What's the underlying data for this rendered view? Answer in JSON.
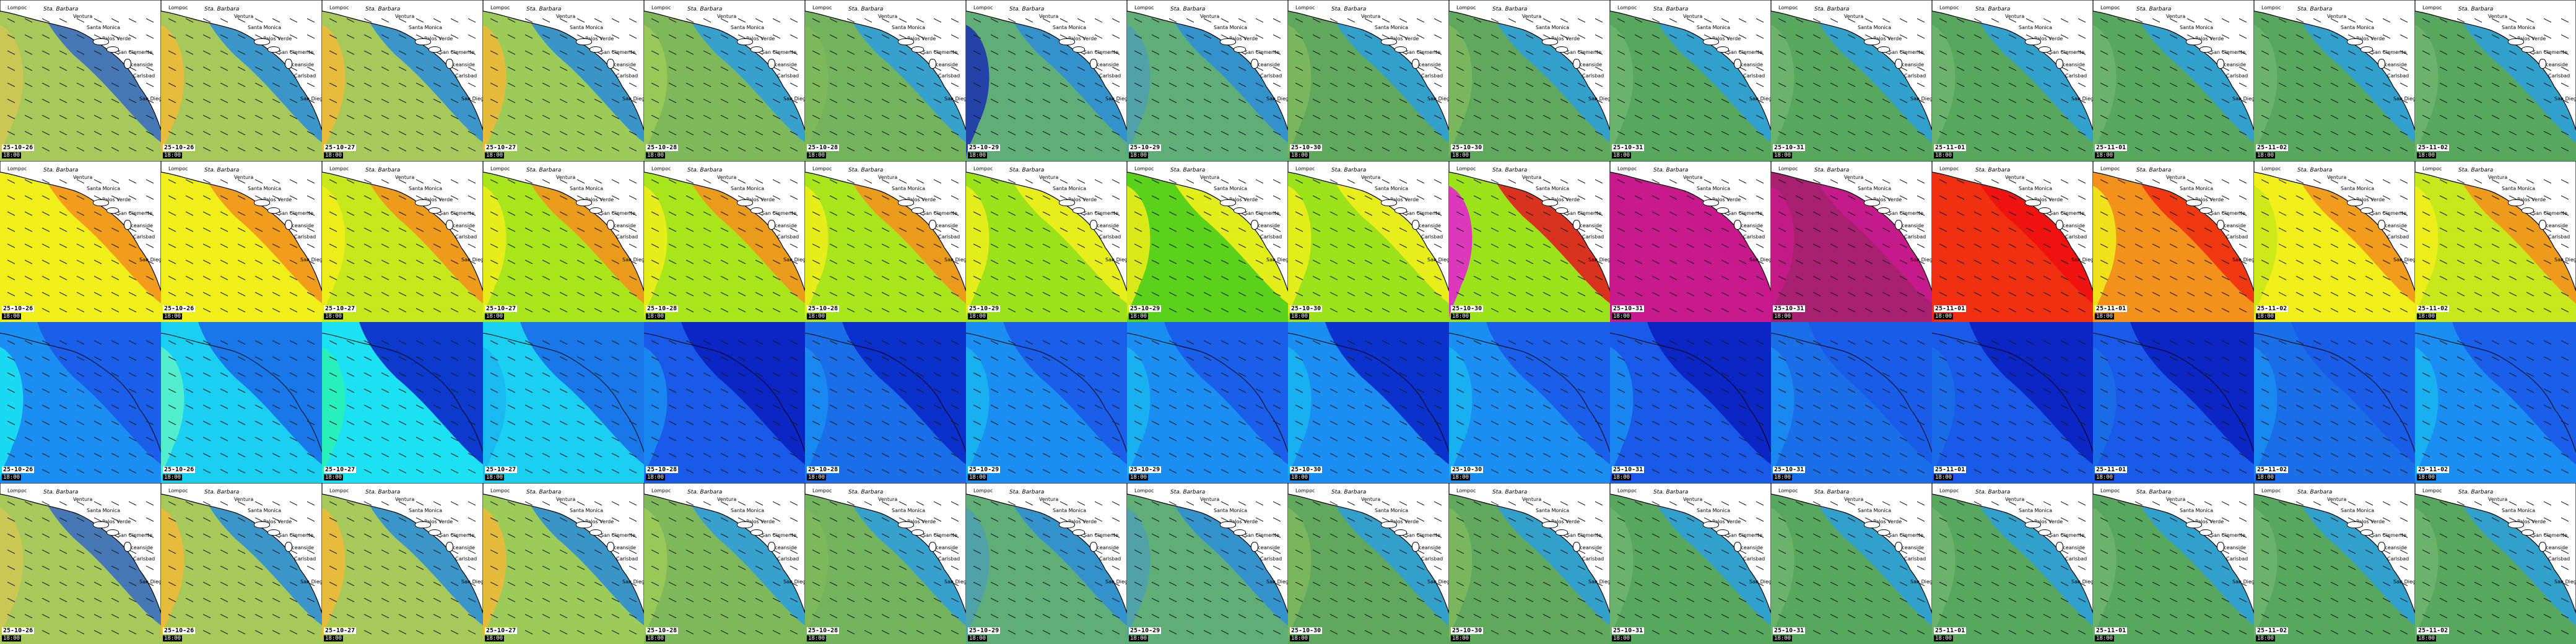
{
  "layout_info": {
    "rows": 4,
    "cols": 16
  },
  "place_labels": [
    {
      "text": "Lompoc",
      "cls": "place"
    },
    {
      "text": "Sta. Barbara",
      "cls": "place italic"
    },
    {
      "text": "Ventura",
      "cls": "place"
    },
    {
      "text": "Santa Monica",
      "cls": "place"
    },
    {
      "text": "Palos Verde",
      "cls": "place"
    },
    {
      "text": "San Clemente",
      "cls": "place"
    },
    {
      "text": "Oceanside",
      "cls": "place"
    },
    {
      "text": "Carlsbad",
      "cls": "place"
    },
    {
      "text": "San Diego",
      "cls": "place"
    }
  ],
  "time_stamps": [
    {
      "date": "25-10-26",
      "time": "18:00"
    },
    {
      "date": "25-10-26",
      "time": "18:00"
    },
    {
      "date": "25-10-27",
      "time": "18:00"
    },
    {
      "date": "25-10-27",
      "time": "18:00"
    },
    {
      "date": "25-10-28",
      "time": "18:00"
    },
    {
      "date": "25-10-28",
      "time": "18:00"
    },
    {
      "date": "25-10-29",
      "time": "18:00"
    },
    {
      "date": "25-10-29",
      "time": "18:00"
    },
    {
      "date": "25-10-30",
      "time": "18:00"
    },
    {
      "date": "25-10-30",
      "time": "18:00"
    },
    {
      "date": "25-10-31",
      "time": "18:00"
    },
    {
      "date": "25-10-31",
      "time": "18:00"
    },
    {
      "date": "25-11-01",
      "time": "18:00"
    },
    {
      "date": "25-11-01",
      "time": "18:00"
    },
    {
      "date": "25-11-02",
      "time": "18:00"
    },
    {
      "date": "25-11-02",
      "time": "18:00"
    }
  ],
  "rows": [
    {
      "variable": "wave-height",
      "panels": [
        {
          "ocean": "#a6c95a",
          "coast": "#3c6fc0",
          "blob": "#d2c553"
        },
        {
          "ocean": "#a6c95a",
          "coast": "#2f8fd4",
          "blob": "#f2b836"
        },
        {
          "ocean": "#a6c95a",
          "coast": "#2f8fd4",
          "blob": "#f2b836"
        },
        {
          "ocean": "#9ccb58",
          "coast": "#2f8fd4",
          "blob": "#f2b836"
        },
        {
          "ocean": "#7fb85a",
          "coast": "#2f9ed8",
          "blob": "#9ccb58"
        },
        {
          "ocean": "#73b35e",
          "coast": "#2f9ed8",
          "blob": "#7fb85a"
        },
        {
          "ocean": "#5fae78",
          "coast": "#2f8fd4",
          "blob": "#1a2fb0"
        },
        {
          "ocean": "#5fae78",
          "coast": "#2f8fd4",
          "blob": "#4f9fb0"
        },
        {
          "ocean": "#5fa85e",
          "coast": "#2f9ed8",
          "blob": "#7fb85a"
        },
        {
          "ocean": "#5fa85e",
          "coast": "#2f9ed8",
          "blob": "#7fb85a"
        },
        {
          "ocean": "#57a85e",
          "coast": "#2f9ed8",
          "blob": "#6fb56e"
        },
        {
          "ocean": "#57a85e",
          "coast": "#2f9ed8",
          "blob": "#6fb56e"
        },
        {
          "ocean": "#57a85e",
          "coast": "#2f9ed8",
          "blob": "#6fb56e"
        },
        {
          "ocean": "#57a85e",
          "coast": "#2f9ed8",
          "blob": "#6fb56e"
        },
        {
          "ocean": "#57a85e",
          "coast": "#2f9ed8",
          "blob": "#6fb56e"
        },
        {
          "ocean": "#57a85e",
          "coast": "#2f9ed8",
          "blob": "#6fb56e"
        }
      ]
    },
    {
      "variable": "wave-period",
      "panels": [
        {
          "ocean": "#f1ef1a",
          "coast": "#f2921c",
          "blob": "#f1ef1a"
        },
        {
          "ocean": "#f1ef1a",
          "coast": "#f2921c",
          "blob": "#f1ef1a"
        },
        {
          "ocean": "#c7e81a",
          "coast": "#f2921c",
          "blob": "#f1ef1a"
        },
        {
          "ocean": "#a8e51a",
          "coast": "#f2921c",
          "blob": "#f1ef1a"
        },
        {
          "ocean": "#a8e51a",
          "coast": "#f2921c",
          "blob": "#f1ef1a"
        },
        {
          "ocean": "#a8e51a",
          "coast": "#f2921c",
          "blob": "#f1ef1a"
        },
        {
          "ocean": "#9be21a",
          "coast": "#f1ef1a",
          "blob": "#f1ef1a"
        },
        {
          "ocean": "#5ad21a",
          "coast": "#f1ef1a",
          "blob": "#f1ef1a"
        },
        {
          "ocean": "#9be21a",
          "coast": "#f1ef1a",
          "blob": "#f1ef1a"
        },
        {
          "ocean": "#9be21a",
          "coast": "#e02020",
          "blob": "#e81ad8"
        },
        {
          "ocean": "#c81a8c",
          "coast": "#c81a8c",
          "blob": "#c81a8c"
        },
        {
          "ocean": "#a82070",
          "coast": "#c81a8c",
          "blob": "#c81a8c"
        },
        {
          "ocean": "#f03010",
          "coast": "#f01010",
          "blob": "#f03010"
        },
        {
          "ocean": "#f2921c",
          "coast": "#f03010",
          "blob": "#f1ef1a"
        },
        {
          "ocean": "#f1ef1a",
          "coast": "#f2921c",
          "blob": "#c7e81a"
        },
        {
          "ocean": "#c7e81a",
          "coast": "#f2921c",
          "blob": "#f1ef1a"
        }
      ]
    },
    {
      "variable": "wind-speed",
      "panels": [
        {
          "ocean": "#1a8ef2",
          "coast": "#1a5ae8",
          "blob": "#1ae8f2"
        },
        {
          "ocean": "#1acff2",
          "coast": "#1a6ee8",
          "blob": "#5af2c8"
        },
        {
          "ocean": "#1ae2f2",
          "coast": "#0a28c8",
          "blob": "#2af2b0"
        },
        {
          "ocean": "#1acff2",
          "coast": "#1a6ee8",
          "blob": "#1ab6f2"
        },
        {
          "ocean": "#1a5ae8",
          "coast": "#0a20c0",
          "blob": "#1a8ef2"
        },
        {
          "ocean": "#1a6ee8",
          "coast": "#0a28c8",
          "blob": "#1a8ef2"
        },
        {
          "ocean": "#1a8ef2",
          "coast": "#1a5ae8",
          "blob": "#1ab6f2"
        },
        {
          "ocean": "#1a8ef2",
          "coast": "#1a5ae8",
          "blob": "#1ab6f2"
        },
        {
          "ocean": "#1a8ef2",
          "coast": "#0a28c8",
          "blob": "#1ab6f2"
        },
        {
          "ocean": "#1a8ef2",
          "coast": "#1a5ae8",
          "blob": "#1ab6f2"
        },
        {
          "ocean": "#1a5ae8",
          "coast": "#0a20c0",
          "blob": "#1a8ef2"
        },
        {
          "ocean": "#1a6ee8",
          "coast": "#1a5ae8",
          "blob": "#1a8ef2"
        },
        {
          "ocean": "#1a5ae8",
          "coast": "#0a20c0",
          "blob": "#1a6ee8"
        },
        {
          "ocean": "#1a5ae8",
          "coast": "#0a20c0",
          "blob": "#1a6ee8"
        },
        {
          "ocean": "#1a6ee8",
          "coast": "#1a5ae8",
          "blob": "#1a8ef2"
        },
        {
          "ocean": "#1a8ef2",
          "coast": "#1a5ae8",
          "blob": "#1ab6f2"
        }
      ]
    },
    {
      "variable": "wave-height-2",
      "panels": [
        {
          "ocean": "#a6c95a",
          "coast": "#3c6fc0",
          "blob": "#d2c553"
        },
        {
          "ocean": "#a6c95a",
          "coast": "#2f8fd4",
          "blob": "#f2b836"
        },
        {
          "ocean": "#a6c95a",
          "coast": "#2f8fd4",
          "blob": "#f2b836"
        },
        {
          "ocean": "#9ccb58",
          "coast": "#2f8fd4",
          "blob": "#f2b836"
        },
        {
          "ocean": "#7fb85a",
          "coast": "#2f9ed8",
          "blob": "#9ccb58"
        },
        {
          "ocean": "#73b35e",
          "coast": "#2f9ed8",
          "blob": "#7fb85a"
        },
        {
          "ocean": "#5fae78",
          "coast": "#2f8fd4",
          "blob": "#4f9fb0"
        },
        {
          "ocean": "#5fae78",
          "coast": "#2f8fd4",
          "blob": "#4f9fb0"
        },
        {
          "ocean": "#5fa85e",
          "coast": "#2f9ed8",
          "blob": "#7fb85a"
        },
        {
          "ocean": "#5fa85e",
          "coast": "#2f9ed8",
          "blob": "#7fb85a"
        },
        {
          "ocean": "#57a85e",
          "coast": "#2f9ed8",
          "blob": "#6fb56e"
        },
        {
          "ocean": "#57a85e",
          "coast": "#2f9ed8",
          "blob": "#6fb56e"
        },
        {
          "ocean": "#57a85e",
          "coast": "#2f9ed8",
          "blob": "#6fb56e"
        },
        {
          "ocean": "#57a85e",
          "coast": "#2f9ed8",
          "blob": "#6fb56e"
        },
        {
          "ocean": "#57a85e",
          "coast": "#2f9ed8",
          "blob": "#6fb56e"
        },
        {
          "ocean": "#57a85e",
          "coast": "#2f9ed8",
          "blob": "#6fb56e"
        }
      ]
    }
  ]
}
